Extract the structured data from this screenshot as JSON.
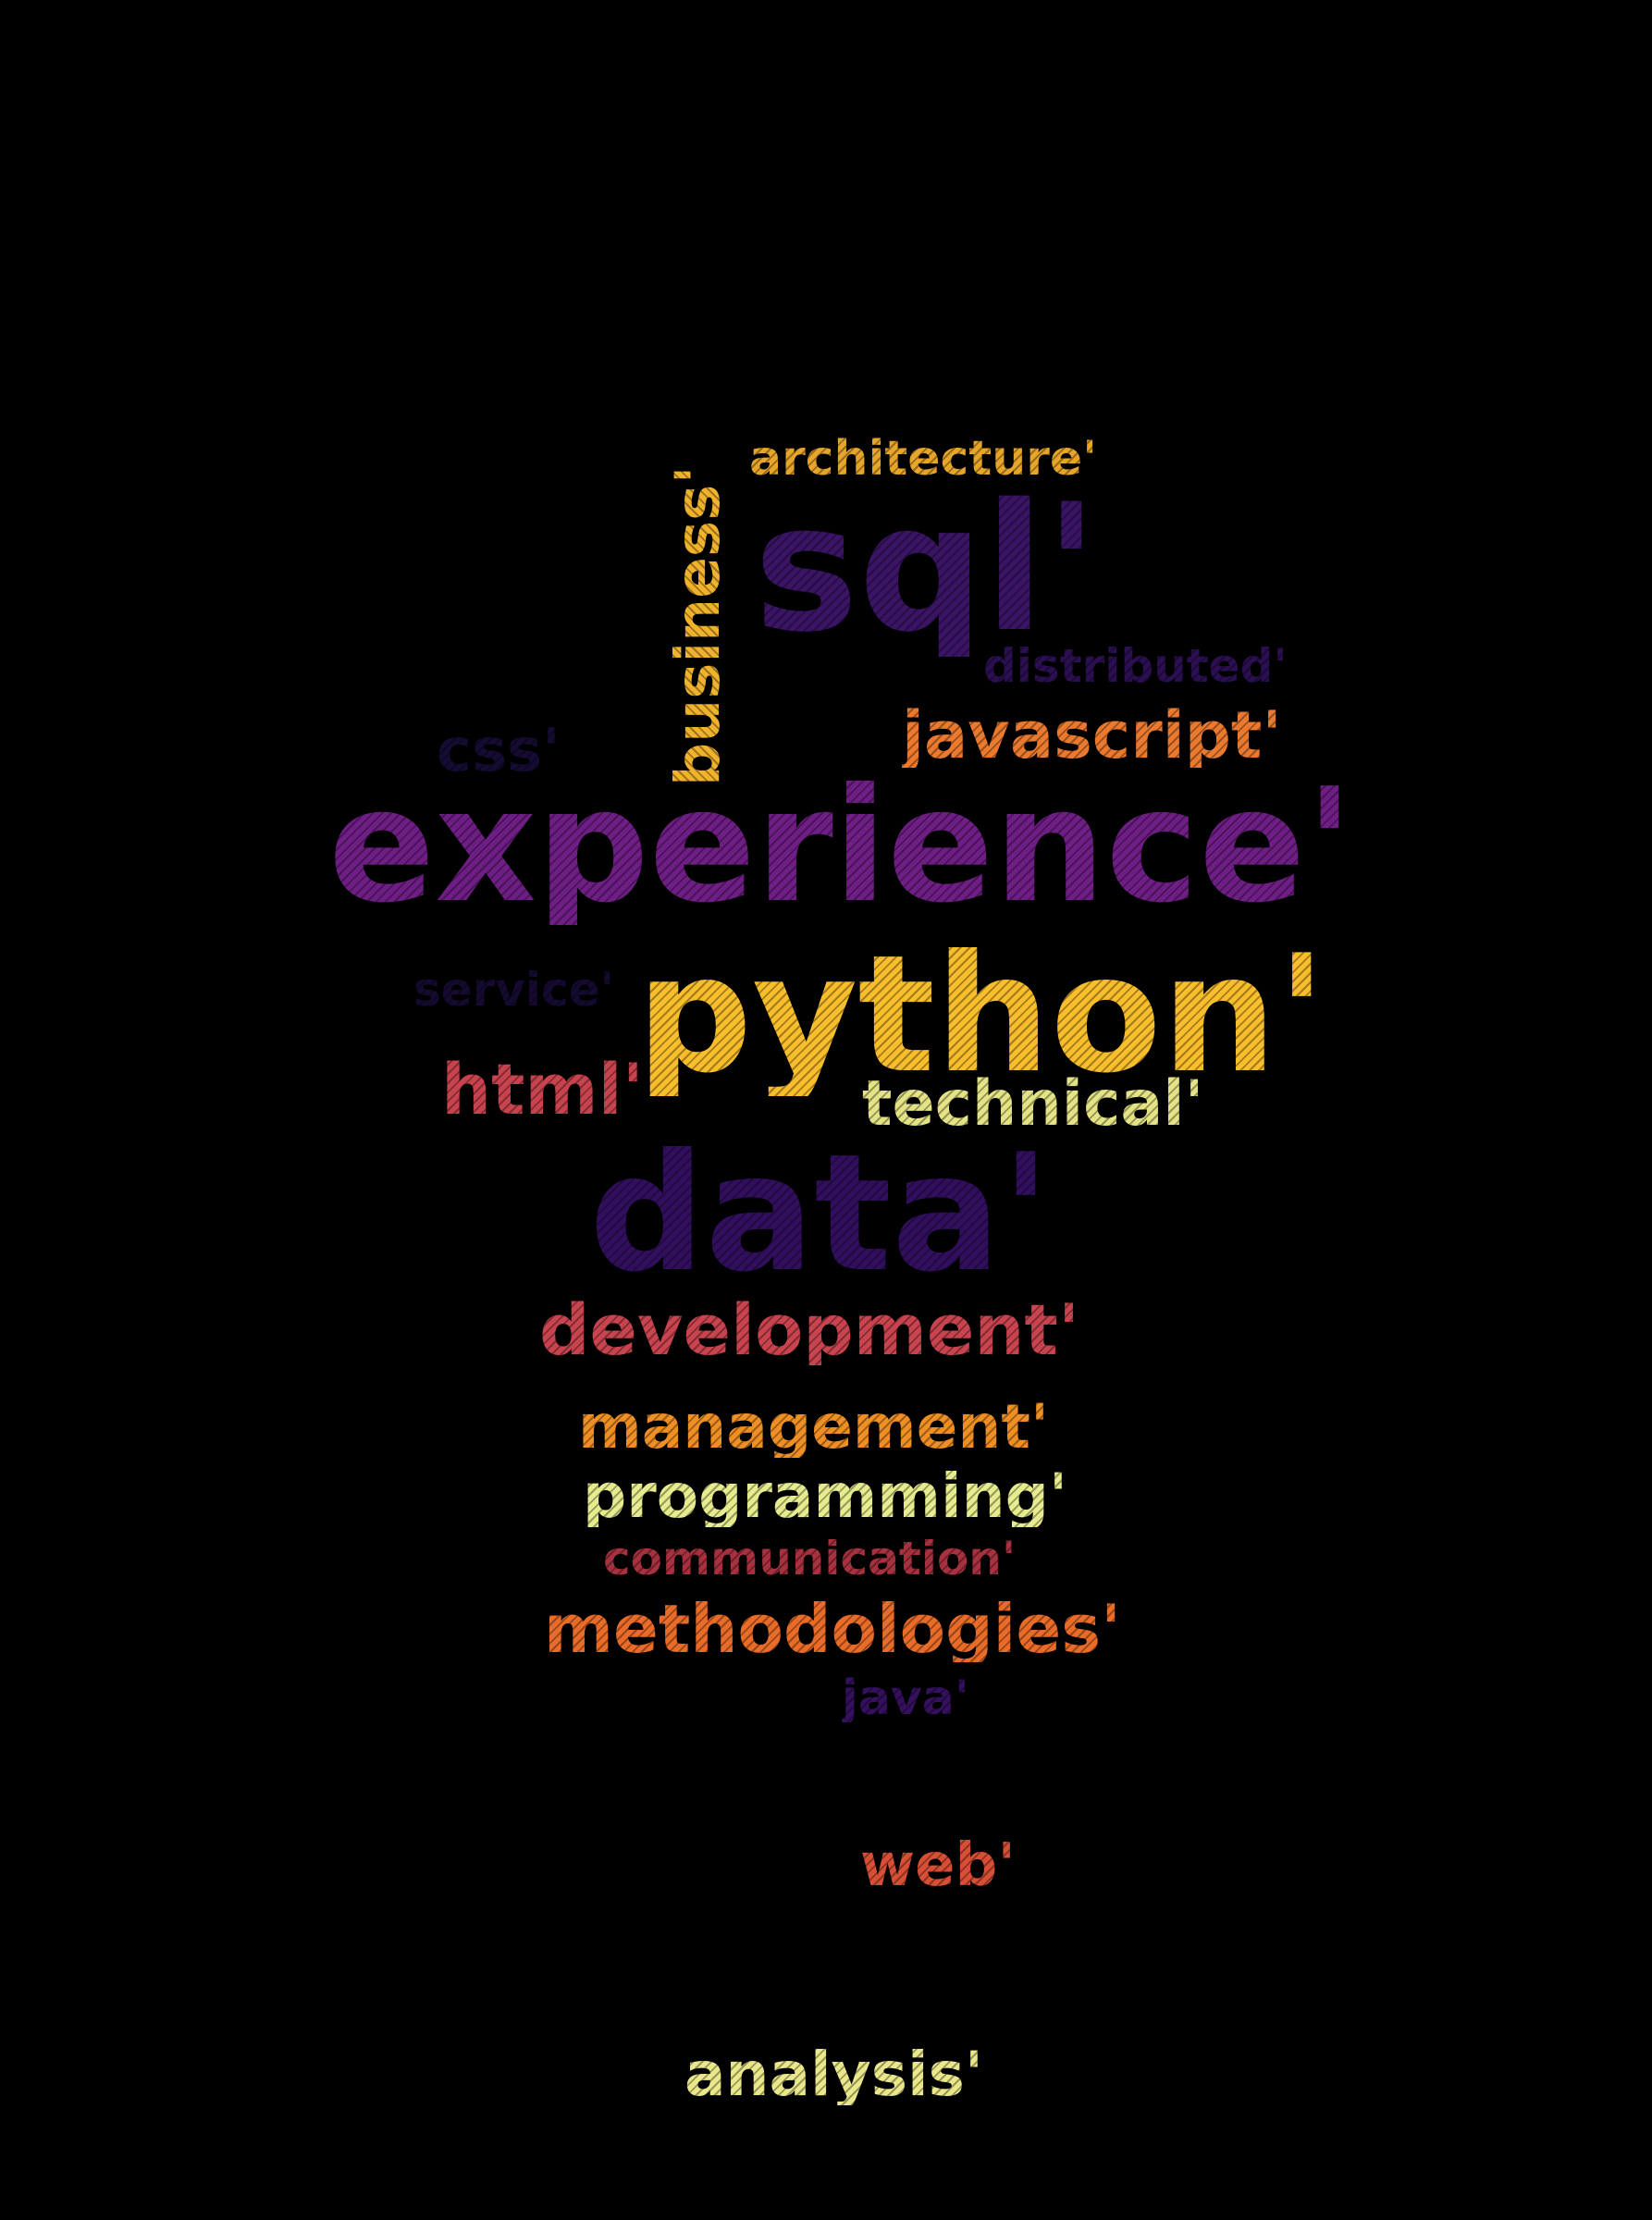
{
  "words": [
    {
      "key": "architecture",
      "text": "architecture'",
      "color": "#E7A62A"
    },
    {
      "key": "business",
      "text": "business'",
      "color": "#F1B32C"
    },
    {
      "key": "sql",
      "text": "sql'",
      "color": "#3B1466"
    },
    {
      "key": "distributed",
      "text": "distributed'",
      "color": "#2B0F52"
    },
    {
      "key": "javascript",
      "text": "javascript'",
      "color": "#EC7A2E"
    },
    {
      "key": "css",
      "text": "css'",
      "color": "#160B33"
    },
    {
      "key": "experience",
      "text": "experience'",
      "color": "#6F1E85"
    },
    {
      "key": "service",
      "text": "service'",
      "color": "#150A30"
    },
    {
      "key": "python",
      "text": "python'",
      "color": "#F8BE2C"
    },
    {
      "key": "html",
      "text": "html'",
      "color": "#C9434E"
    },
    {
      "key": "technical",
      "text": "technical'",
      "color": "#E4E486"
    },
    {
      "key": "data",
      "text": "data'",
      "color": "#320F5E"
    },
    {
      "key": "development",
      "text": "development'",
      "color": "#C9444E"
    },
    {
      "key": "management",
      "text": "management'",
      "color": "#EF8F24"
    },
    {
      "key": "programming",
      "text": "programming'",
      "color": "#E7EC8E"
    },
    {
      "key": "communication",
      "text": "communication'",
      "color": "#A8313F"
    },
    {
      "key": "methodologies",
      "text": "methodologies'",
      "color": "#E96C28"
    },
    {
      "key": "java",
      "text": "java'",
      "color": "#34105E"
    },
    {
      "key": "web",
      "text": "web'",
      "color": "#D94F35"
    },
    {
      "key": "analysis",
      "text": "analysis'",
      "color": "#EAE88A"
    }
  ]
}
